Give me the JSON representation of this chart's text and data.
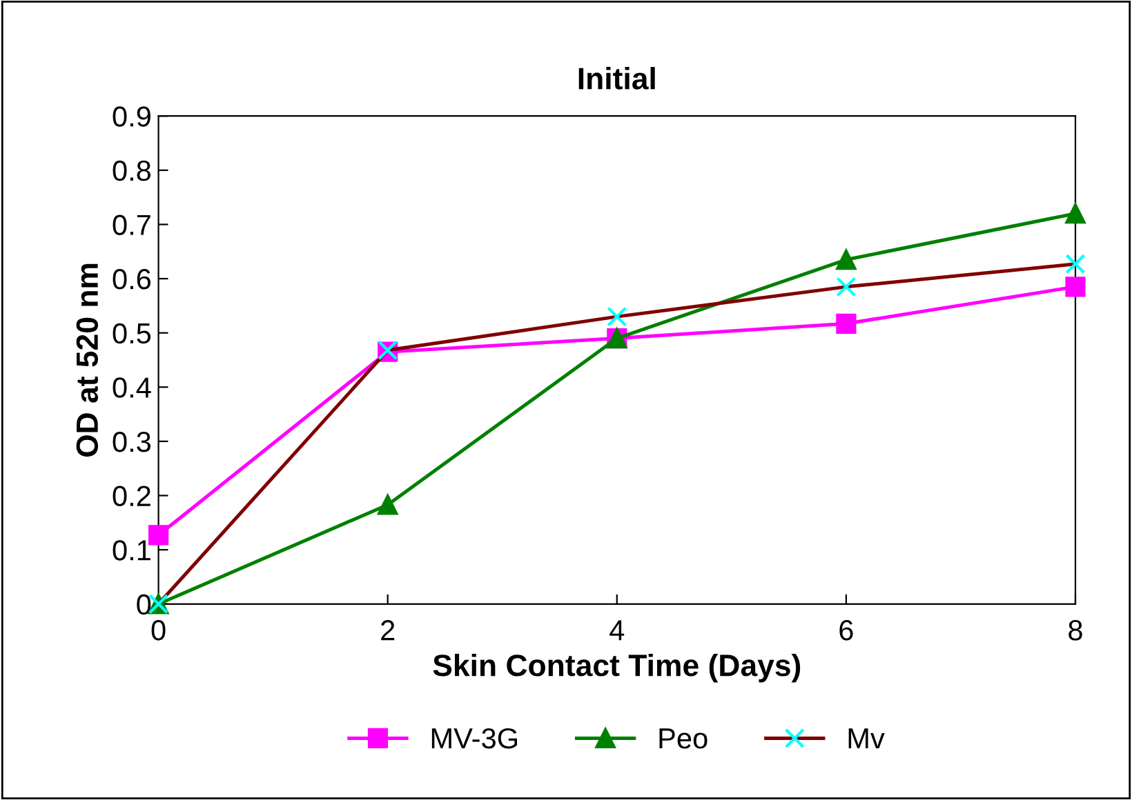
{
  "chart_data": {
    "type": "line",
    "title": "Initial",
    "xlabel": "Skin Contact Time (Days)",
    "ylabel": "OD at 520 nm",
    "x": [
      0,
      2,
      4,
      6,
      8
    ],
    "series": [
      {
        "name": "MV-3G",
        "color": "#ff00ff",
        "marker": "square",
        "values": [
          0.127,
          0.465,
          0.49,
          0.517,
          0.585
        ]
      },
      {
        "name": "Peo",
        "color": "#008000",
        "marker": "triangle",
        "values": [
          0,
          0.183,
          0.49,
          0.635,
          0.72
        ]
      },
      {
        "name": "Mv",
        "color": "#800000",
        "colors": [
          "#00ffff",
          "#00ffff",
          "#00ffff",
          "#00ffff",
          "#00ffff"
        ],
        "marker": "cross",
        "values": [
          0,
          0.468,
          0.53,
          0.585,
          0.627
        ]
      }
    ],
    "xlim": [
      0,
      8
    ],
    "xticks": [
      0,
      2,
      4,
      6,
      8
    ],
    "ylim": [
      0,
      0.9
    ],
    "yticks": [
      0,
      0.1,
      0.2,
      0.3,
      0.4,
      0.5,
      0.6,
      0.7,
      0.8,
      0.9
    ],
    "grid": false,
    "legend": "bottom",
    "line_style": "solid"
  }
}
